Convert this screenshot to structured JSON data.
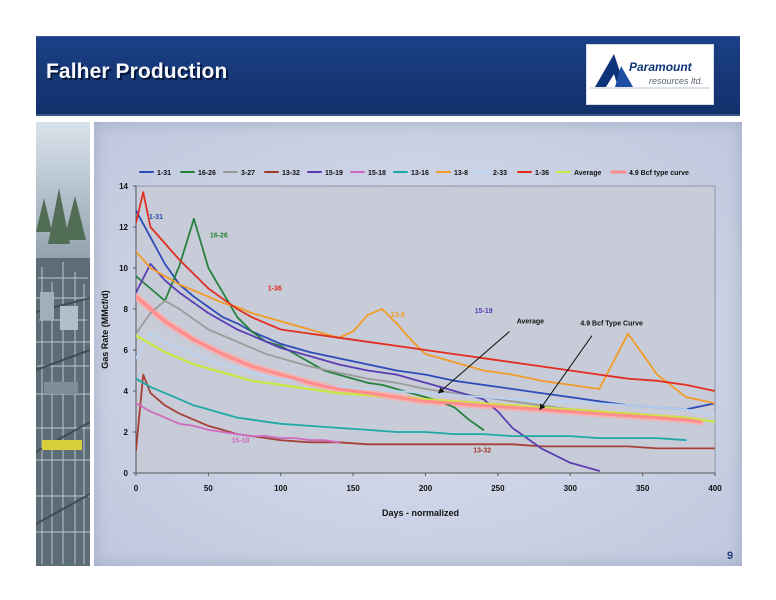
{
  "header": {
    "title": "Falher Production",
    "page_number": "9"
  },
  "logo": {
    "name": "Paramount",
    "subtitle": "resources ltd."
  },
  "colors": {
    "header": "#173b7d",
    "panel": "#d3d9ea",
    "plot_background": "#c8ccd8"
  },
  "chart_data": {
    "type": "line",
    "title": "",
    "xlabel": "Days - normalized",
    "ylabel": "Gas Rate (MMcf/d)",
    "xlim": [
      0,
      400
    ],
    "ylim": [
      0,
      14
    ],
    "x_ticks": [
      0,
      50,
      100,
      150,
      200,
      250,
      300,
      350,
      400
    ],
    "y_ticks": [
      0,
      2,
      4,
      6,
      8,
      10,
      12,
      14
    ],
    "grid": false,
    "legend_position": "top",
    "legend": [
      "1-31",
      "16-26",
      "3-27",
      "13-32",
      "15-19",
      "15-18",
      "13-16",
      "13-8",
      "2-33",
      "1-36",
      "Average",
      "4.9 Bcf type curve"
    ],
    "series": [
      {
        "name": "1-31",
        "color": "#2b49b8",
        "label_text": "1-31",
        "label_at": [
          9,
          12.4
        ],
        "x": [
          0,
          10,
          20,
          30,
          40,
          50,
          60,
          70,
          80,
          90,
          100,
          120,
          140,
          160,
          180,
          200,
          220,
          240,
          260,
          280,
          300,
          320,
          340,
          360,
          380,
          400
        ],
        "y": [
          12.8,
          11.5,
          10.2,
          9.2,
          8.6,
          8.1,
          7.6,
          7.3,
          6.9,
          6.6,
          6.3,
          5.9,
          5.6,
          5.3,
          5.0,
          4.8,
          4.5,
          4.3,
          4.1,
          3.9,
          3.7,
          3.5,
          3.3,
          3.2,
          3.1,
          3.4
        ]
      },
      {
        "name": "16-26",
        "color": "#24813a",
        "label_text": "16-26",
        "label_at": [
          51,
          11.5
        ],
        "x": [
          0,
          10,
          20,
          30,
          40,
          50,
          60,
          70,
          80,
          90,
          100,
          110,
          120,
          130,
          140,
          150,
          160,
          170,
          180,
          190,
          200,
          210,
          220,
          230,
          240
        ],
        "y": [
          9.6,
          9.0,
          8.4,
          10.1,
          12.4,
          10.0,
          8.8,
          7.6,
          6.9,
          6.4,
          6.2,
          5.8,
          5.4,
          5.0,
          4.8,
          4.6,
          4.4,
          4.3,
          4.1,
          3.9,
          3.7,
          3.5,
          3.2,
          2.6,
          2.1
        ]
      },
      {
        "name": "3-27",
        "color": "#9a9a9a",
        "x": [
          0,
          10,
          20,
          30,
          40,
          50,
          60,
          70,
          80,
          90,
          100,
          120,
          140,
          160,
          180,
          200,
          220,
          240,
          260,
          280,
          300,
          320,
          340,
          360,
          380,
          390
        ],
        "y": [
          6.8,
          7.8,
          8.4,
          8.0,
          7.5,
          7.0,
          6.7,
          6.4,
          6.1,
          5.8,
          5.6,
          5.2,
          4.9,
          4.6,
          4.4,
          4.1,
          3.9,
          3.7,
          3.5,
          3.3,
          3.1,
          3.0,
          2.9,
          2.8,
          2.7,
          2.6
        ]
      },
      {
        "name": "13-32",
        "color": "#a33a2e",
        "label_text": "13-32",
        "label_at": [
          233,
          1.0
        ],
        "x": [
          0,
          5,
          10,
          20,
          30,
          40,
          50,
          60,
          70,
          80,
          90,
          100,
          120,
          140,
          160,
          180,
          200,
          220,
          240,
          260,
          280,
          300,
          320,
          340,
          360,
          380,
          400
        ],
        "y": [
          1.1,
          4.8,
          3.9,
          3.3,
          2.9,
          2.6,
          2.3,
          2.1,
          1.9,
          1.8,
          1.7,
          1.6,
          1.5,
          1.5,
          1.4,
          1.4,
          1.4,
          1.4,
          1.4,
          1.4,
          1.3,
          1.3,
          1.3,
          1.3,
          1.2,
          1.2,
          1.2
        ]
      },
      {
        "name": "15-19",
        "color": "#5a3bb1",
        "label_text": "15-19",
        "label_at": [
          234,
          7.8
        ],
        "x": [
          0,
          10,
          20,
          30,
          40,
          50,
          60,
          70,
          80,
          90,
          100,
          120,
          140,
          160,
          180,
          200,
          220,
          240,
          250,
          260,
          280,
          300,
          320
        ],
        "y": [
          8.8,
          10.2,
          9.4,
          8.8,
          8.3,
          7.8,
          7.4,
          7.0,
          6.7,
          6.4,
          6.1,
          5.7,
          5.3,
          5.0,
          4.8,
          4.4,
          4.0,
          3.6,
          3.0,
          2.2,
          1.2,
          0.5,
          0.1
        ]
      },
      {
        "name": "15-18",
        "color": "#cf68c0",
        "label_text": "15-18",
        "label_at": [
          66,
          1.5
        ],
        "x": [
          0,
          10,
          20,
          30,
          40,
          50,
          60,
          70,
          80,
          90,
          100,
          110,
          120,
          130,
          140
        ],
        "y": [
          3.4,
          3.0,
          2.7,
          2.4,
          2.3,
          2.1,
          2.0,
          1.9,
          1.8,
          1.8,
          1.7,
          1.7,
          1.6,
          1.6,
          1.5
        ]
      },
      {
        "name": "13-16",
        "color": "#1ba8a4",
        "x": [
          0,
          10,
          20,
          30,
          40,
          50,
          60,
          70,
          80,
          90,
          100,
          120,
          140,
          160,
          180,
          200,
          220,
          240,
          260,
          280,
          300,
          320,
          340,
          360,
          380
        ],
        "y": [
          4.6,
          4.2,
          3.9,
          3.6,
          3.3,
          3.1,
          2.9,
          2.7,
          2.6,
          2.5,
          2.4,
          2.3,
          2.2,
          2.1,
          2.0,
          2.0,
          1.9,
          1.9,
          1.8,
          1.8,
          1.8,
          1.7,
          1.7,
          1.7,
          1.6
        ]
      },
      {
        "name": "13-8",
        "color": "#f39b24",
        "label_text": "13-8",
        "label_at": [
          176,
          7.6
        ],
        "x": [
          0,
          10,
          20,
          30,
          40,
          50,
          60,
          70,
          80,
          90,
          100,
          110,
          120,
          130,
          140,
          150,
          160,
          170,
          180,
          190,
          200,
          220,
          240,
          260,
          280,
          300,
          320,
          340,
          360,
          380,
          400
        ],
        "y": [
          10.8,
          10.0,
          9.6,
          9.2,
          8.9,
          8.6,
          8.3,
          8.1,
          7.8,
          7.6,
          7.4,
          7.2,
          7.0,
          6.8,
          6.6,
          6.9,
          7.7,
          8.0,
          7.3,
          6.5,
          5.8,
          5.4,
          5.0,
          4.8,
          4.5,
          4.3,
          4.1,
          6.8,
          4.8,
          3.7,
          3.4
        ]
      },
      {
        "name": "2-33",
        "color": "#b8d4f2",
        "x": [
          0,
          10,
          20,
          30,
          40,
          50,
          60,
          70,
          80,
          90,
          100,
          120,
          140,
          160,
          180,
          200,
          220,
          240,
          260,
          280,
          300,
          320,
          340,
          360,
          380,
          400
        ],
        "y": [
          5.6,
          6.8,
          6.4,
          6.1,
          5.8,
          5.5,
          5.3,
          5.1,
          4.9,
          4.7,
          4.6,
          4.4,
          4.2,
          4.1,
          4.0,
          3.9,
          3.8,
          3.7,
          3.6,
          3.5,
          3.5,
          3.4,
          3.3,
          3.2,
          3.1,
          2.8
        ]
      },
      {
        "name": "1-36",
        "color": "#e22b1d",
        "label_text": "1-36",
        "label_at": [
          91,
          8.9
        ],
        "x": [
          0,
          5,
          10,
          20,
          30,
          40,
          50,
          60,
          70,
          80,
          90,
          100,
          120,
          140,
          160,
          180,
          200,
          220,
          240,
          260,
          280,
          300,
          320,
          340,
          360,
          380,
          400
        ],
        "y": [
          12.2,
          13.7,
          12.0,
          11.2,
          10.4,
          9.7,
          9.0,
          8.5,
          8.0,
          7.6,
          7.3,
          7.0,
          6.8,
          6.6,
          6.4,
          6.2,
          6.0,
          5.8,
          5.6,
          5.4,
          5.2,
          5.0,
          4.8,
          4.6,
          4.5,
          4.3,
          4.0
        ]
      },
      {
        "name": "Average",
        "color": "#c9e93e",
        "x": [
          0,
          10,
          20,
          30,
          40,
          50,
          60,
          70,
          80,
          90,
          100,
          120,
          140,
          160,
          180,
          200,
          220,
          240,
          260,
          280,
          300,
          320,
          340,
          360,
          380,
          400
        ],
        "y": [
          6.7,
          6.3,
          5.9,
          5.6,
          5.3,
          5.1,
          4.9,
          4.7,
          4.5,
          4.4,
          4.3,
          4.1,
          3.9,
          3.8,
          3.7,
          3.6,
          3.5,
          3.4,
          3.3,
          3.2,
          3.1,
          3.0,
          2.9,
          2.8,
          2.7,
          2.5
        ]
      },
      {
        "name": "4.9 Bcf type curve",
        "color": "#ff8d8d",
        "x": [
          0,
          20,
          40,
          60,
          80,
          100,
          120,
          140,
          160,
          180,
          200,
          220,
          240,
          260,
          280,
          300,
          320,
          340,
          360,
          380,
          390
        ],
        "y": [
          8.6,
          7.4,
          6.5,
          5.8,
          5.2,
          4.8,
          4.4,
          4.1,
          3.9,
          3.7,
          3.5,
          3.4,
          3.3,
          3.2,
          3.1,
          3.0,
          2.9,
          2.8,
          2.7,
          2.6,
          2.5
        ]
      }
    ],
    "annotations": [
      {
        "text": "Average",
        "label_at": [
          263,
          7.3
        ],
        "arrow_from": [
          258,
          6.9
        ],
        "arrow_to": [
          209,
          3.9
        ]
      },
      {
        "text": "4.9 Bcf Type Curve",
        "label_at": [
          307,
          7.2
        ],
        "arrow_from": [
          315,
          6.7
        ],
        "arrow_to": [
          279,
          3.1
        ]
      }
    ]
  }
}
